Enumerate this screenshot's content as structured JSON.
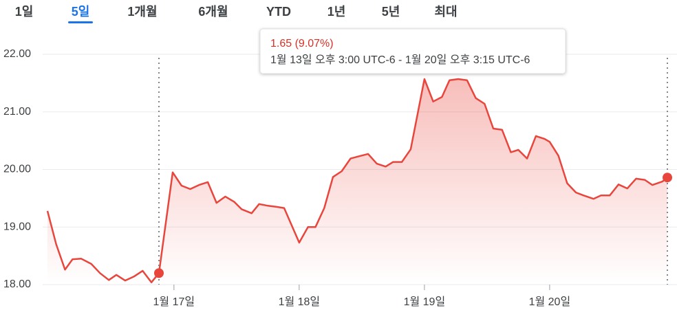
{
  "tabs": [
    "1일",
    "5일",
    "1개월",
    "6개월",
    "YTD",
    "1년",
    "5년",
    "최대"
  ],
  "active_tab": "5일",
  "chart_data": {
    "type": "line",
    "color": "#e8453c",
    "fill_area": true,
    "grid": true,
    "tooltip": {
      "change": "1.65 (9.07%)",
      "range": "1월 13일 오후 3:00 UTC-6 - 1월 20일 오후 3:15 UTC-6"
    },
    "x": [
      15.99,
      16.06,
      16.13,
      16.19,
      16.26,
      16.34,
      16.41,
      16.48,
      16.54,
      16.61,
      16.68,
      16.75,
      16.82,
      16.88,
      16.99,
      17.06,
      17.13,
      17.2,
      17.27,
      17.34,
      17.41,
      17.48,
      17.54,
      17.62,
      17.68,
      17.75,
      17.82,
      17.88,
      18.0,
      18.07,
      18.13,
      18.2,
      18.27,
      18.34,
      18.41,
      18.48,
      18.55,
      18.62,
      18.69,
      18.75,
      18.82,
      18.89,
      19.0,
      19.07,
      19.14,
      19.2,
      19.27,
      19.34,
      19.41,
      19.48,
      19.55,
      19.62,
      19.69,
      19.75,
      19.82,
      19.89,
      19.96,
      20.0,
      20.07,
      20.14,
      20.21,
      20.27,
      20.35,
      20.41,
      20.48,
      20.55,
      20.62,
      20.69,
      20.76,
      20.82,
      20.9,
      20.94
    ],
    "values": [
      19.28,
      18.7,
      18.26,
      18.44,
      18.45,
      18.36,
      18.2,
      18.08,
      18.17,
      18.07,
      18.14,
      18.24,
      18.04,
      18.2,
      19.95,
      19.72,
      19.66,
      19.73,
      19.78,
      19.42,
      19.53,
      19.44,
      19.31,
      19.24,
      19.4,
      19.37,
      19.35,
      19.33,
      18.73,
      19.0,
      19.0,
      19.33,
      19.87,
      19.97,
      20.19,
      20.23,
      20.27,
      20.1,
      20.05,
      20.13,
      20.13,
      20.35,
      21.57,
      21.18,
      21.26,
      21.55,
      21.57,
      21.55,
      21.24,
      21.14,
      20.71,
      20.69,
      20.3,
      20.34,
      20.19,
      20.58,
      20.53,
      20.48,
      20.24,
      19.76,
      19.6,
      19.55,
      19.49,
      19.55,
      19.55,
      19.74,
      19.67,
      19.84,
      19.82,
      19.73,
      19.79,
      19.86
    ],
    "xlim": [
      15.99,
      20.94
    ],
    "xticks": [
      {
        "value": 17,
        "label": "1월 17일"
      },
      {
        "value": 18,
        "label": "1월 18일"
      },
      {
        "value": 19,
        "label": "1월 19일"
      },
      {
        "value": 20,
        "label": "1월 20일"
      }
    ],
    "ylim": [
      18,
      22
    ],
    "yticks": [
      {
        "value": 18,
        "label": "18.00"
      },
      {
        "value": 19,
        "label": "19.00"
      },
      {
        "value": 20,
        "label": "20.00"
      },
      {
        "value": 21,
        "label": "21.00"
      },
      {
        "value": 22,
        "label": "22.00"
      }
    ]
  }
}
